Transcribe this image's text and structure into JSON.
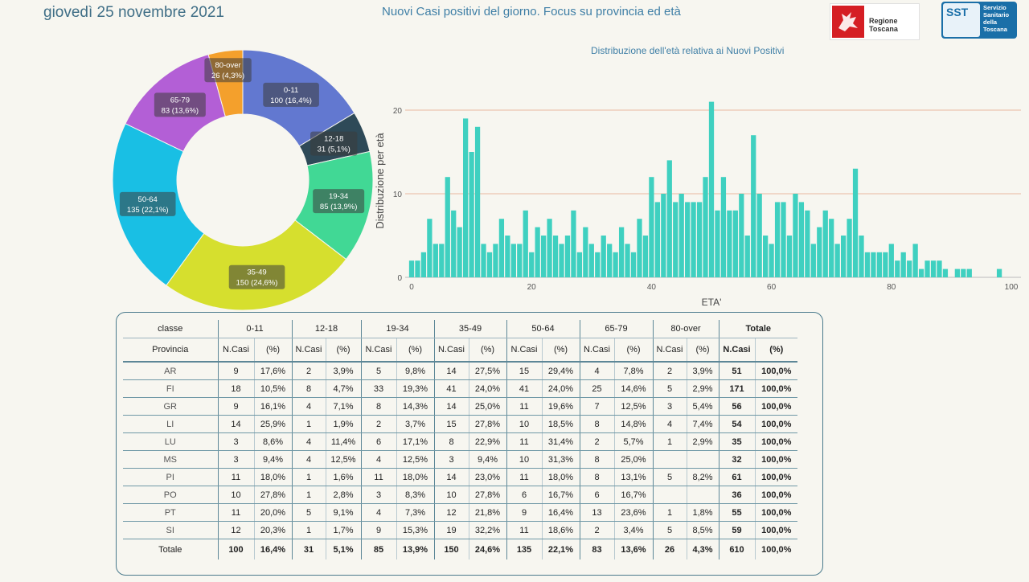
{
  "header": {
    "date": "giovedì 25 novembre 2021",
    "headline": "Nuovi Casi positivi del giorno. Focus su provincia ed età",
    "logo_rt_text": "Regione Toscana",
    "logo_sst_abbr": "SST",
    "logo_sst_text": "Servizio Sanitario della Toscana"
  },
  "chart_data": [
    {
      "type": "pie",
      "donut": true,
      "labels": [
        "0-11",
        "12-18",
        "19-34",
        "35-49",
        "50-64",
        "65-79",
        "80-over"
      ],
      "values": [
        100,
        31,
        85,
        150,
        135,
        83,
        26
      ],
      "value_labels": [
        "100 (16,4%)",
        "31 (5,1%)",
        "85 (13,9%)",
        "150 (24,6%)",
        "135 (22,1%)",
        "83 (13,6%)",
        "26 (4,3%)"
      ],
      "colors": [
        "#6278d0",
        "#2e4a58",
        "#41d895",
        "#d6df2e",
        "#19bfe4",
        "#b35fd6",
        "#f4a02c"
      ]
    },
    {
      "type": "bar",
      "title": "Distribuzione dell'età relativa ai Nuovi Positivi",
      "xlabel": "ETA'",
      "ylabel": "Distribuzione per età",
      "xlim": [
        0,
        100
      ],
      "ylim": [
        0,
        22
      ],
      "xticks": [
        0,
        20,
        40,
        60,
        80,
        100
      ],
      "yticks": [
        0,
        10,
        20
      ],
      "color": "#3fd0c0",
      "x": [
        0,
        1,
        2,
        3,
        4,
        5,
        6,
        7,
        8,
        9,
        10,
        11,
        12,
        13,
        14,
        15,
        16,
        17,
        18,
        19,
        20,
        21,
        22,
        23,
        24,
        25,
        26,
        27,
        28,
        29,
        30,
        31,
        32,
        33,
        34,
        35,
        36,
        37,
        38,
        39,
        40,
        41,
        42,
        43,
        44,
        45,
        46,
        47,
        48,
        49,
        50,
        51,
        52,
        53,
        54,
        55,
        56,
        57,
        58,
        59,
        60,
        61,
        62,
        63,
        64,
        65,
        66,
        67,
        68,
        69,
        70,
        71,
        72,
        73,
        74,
        75,
        76,
        77,
        78,
        79,
        80,
        81,
        82,
        83,
        84,
        85,
        86,
        87,
        88,
        89,
        90,
        91,
        92,
        93,
        94,
        95,
        96,
        97,
        98,
        99
      ],
      "y": [
        2,
        2,
        3,
        7,
        4,
        4,
        12,
        8,
        6,
        19,
        15,
        18,
        4,
        3,
        4,
        7,
        5,
        4,
        4,
        8,
        3,
        6,
        5,
        7,
        5,
        4,
        5,
        8,
        3,
        6,
        4,
        3,
        5,
        4,
        3,
        6,
        4,
        3,
        7,
        5,
        12,
        9,
        10,
        14,
        9,
        10,
        9,
        9,
        9,
        12,
        21,
        8,
        12,
        8,
        8,
        10,
        5,
        17,
        10,
        5,
        4,
        9,
        9,
        5,
        10,
        9,
        8,
        4,
        6,
        8,
        7,
        4,
        5,
        7,
        13,
        5,
        3,
        3,
        3,
        3,
        4,
        2,
        3,
        2,
        4,
        1,
        2,
        2,
        2,
        1,
        0,
        1,
        1,
        1,
        0,
        0,
        0,
        0,
        1,
        0
      ]
    }
  ],
  "table": {
    "top_headers": [
      "classe",
      "0-11",
      "12-18",
      "19-34",
      "35-49",
      "50-64",
      "65-79",
      "80-over",
      "Totale"
    ],
    "sub_headers": [
      "Provincia",
      "N.Casi",
      "(%)",
      "N.Casi",
      "(%)",
      "N.Casi",
      "(%)",
      "N.Casi",
      "(%)",
      "N.Casi",
      "(%)",
      "N.Casi",
      "(%)",
      "N.Casi",
      "(%)",
      "N.Casi",
      "(%)"
    ],
    "rows": [
      [
        "AR",
        "9",
        "17,6%",
        "2",
        "3,9%",
        "5",
        "9,8%",
        "14",
        "27,5%",
        "15",
        "29,4%",
        "4",
        "7,8%",
        "2",
        "3,9%",
        "51",
        "100,0%"
      ],
      [
        "FI",
        "18",
        "10,5%",
        "8",
        "4,7%",
        "33",
        "19,3%",
        "41",
        "24,0%",
        "41",
        "24,0%",
        "25",
        "14,6%",
        "5",
        "2,9%",
        "171",
        "100,0%"
      ],
      [
        "GR",
        "9",
        "16,1%",
        "4",
        "7,1%",
        "8",
        "14,3%",
        "14",
        "25,0%",
        "11",
        "19,6%",
        "7",
        "12,5%",
        "3",
        "5,4%",
        "56",
        "100,0%"
      ],
      [
        "LI",
        "14",
        "25,9%",
        "1",
        "1,9%",
        "2",
        "3,7%",
        "15",
        "27,8%",
        "10",
        "18,5%",
        "8",
        "14,8%",
        "4",
        "7,4%",
        "54",
        "100,0%"
      ],
      [
        "LU",
        "3",
        "8,6%",
        "4",
        "11,4%",
        "6",
        "17,1%",
        "8",
        "22,9%",
        "11",
        "31,4%",
        "2",
        "5,7%",
        "1",
        "2,9%",
        "35",
        "100,0%"
      ],
      [
        "MS",
        "3",
        "9,4%",
        "4",
        "12,5%",
        "4",
        "12,5%",
        "3",
        "9,4%",
        "10",
        "31,3%",
        "8",
        "25,0%",
        "",
        "",
        "32",
        "100,0%"
      ],
      [
        "PI",
        "11",
        "18,0%",
        "1",
        "1,6%",
        "11",
        "18,0%",
        "14",
        "23,0%",
        "11",
        "18,0%",
        "8",
        "13,1%",
        "5",
        "8,2%",
        "61",
        "100,0%"
      ],
      [
        "PO",
        "10",
        "27,8%",
        "1",
        "2,8%",
        "3",
        "8,3%",
        "10",
        "27,8%",
        "6",
        "16,7%",
        "6",
        "16,7%",
        "",
        "",
        "36",
        "100,0%"
      ],
      [
        "PT",
        "11",
        "20,0%",
        "5",
        "9,1%",
        "4",
        "7,3%",
        "12",
        "21,8%",
        "9",
        "16,4%",
        "13",
        "23,6%",
        "1",
        "1,8%",
        "55",
        "100,0%"
      ],
      [
        "SI",
        "12",
        "20,3%",
        "1",
        "1,7%",
        "9",
        "15,3%",
        "19",
        "32,2%",
        "11",
        "18,6%",
        "2",
        "3,4%",
        "5",
        "8,5%",
        "59",
        "100,0%"
      ]
    ],
    "total_row": [
      "Totale",
      "100",
      "16,4%",
      "31",
      "5,1%",
      "85",
      "13,9%",
      "150",
      "24,6%",
      "135",
      "22,1%",
      "83",
      "13,6%",
      "26",
      "4,3%",
      "610",
      "100,0%"
    ]
  }
}
